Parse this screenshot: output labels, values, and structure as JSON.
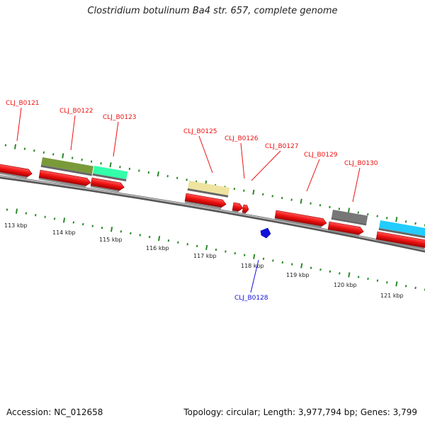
{
  "title": "Clostridium botulinum Ba4 str. 657, complete genome",
  "accession": "Accession: NC_012658",
  "summary": "Topology: circular; Length: 3,977,794 bp; Genes: 3,799",
  "colors": {
    "forward_gene": "#ee1111",
    "reverse_gene": "#1111dd",
    "tick": "#2a8a2a",
    "backbone": "#8a8a8a"
  },
  "axis_labels": [
    "113 kbp",
    "114 kbp",
    "115 kbp",
    "116 kbp",
    "117 kbp",
    "118 kbp",
    "119 kbp",
    "120 kbp",
    "121 kbp"
  ],
  "gene_labels": [
    {
      "name": "CLJ_B0121",
      "strand": "forward"
    },
    {
      "name": "CLJ_B0122",
      "strand": "forward"
    },
    {
      "name": "CLJ_B0123",
      "strand": "forward"
    },
    {
      "name": "CLJ_B0125",
      "strand": "forward"
    },
    {
      "name": "CLJ_B0126",
      "strand": "forward"
    },
    {
      "name": "CLJ_B0127",
      "strand": "forward"
    },
    {
      "name": "CLJ_B0129",
      "strand": "forward"
    },
    {
      "name": "CLJ_B0130",
      "strand": "forward"
    },
    {
      "name": "CLJ_B0128",
      "strand": "reverse"
    }
  ]
}
